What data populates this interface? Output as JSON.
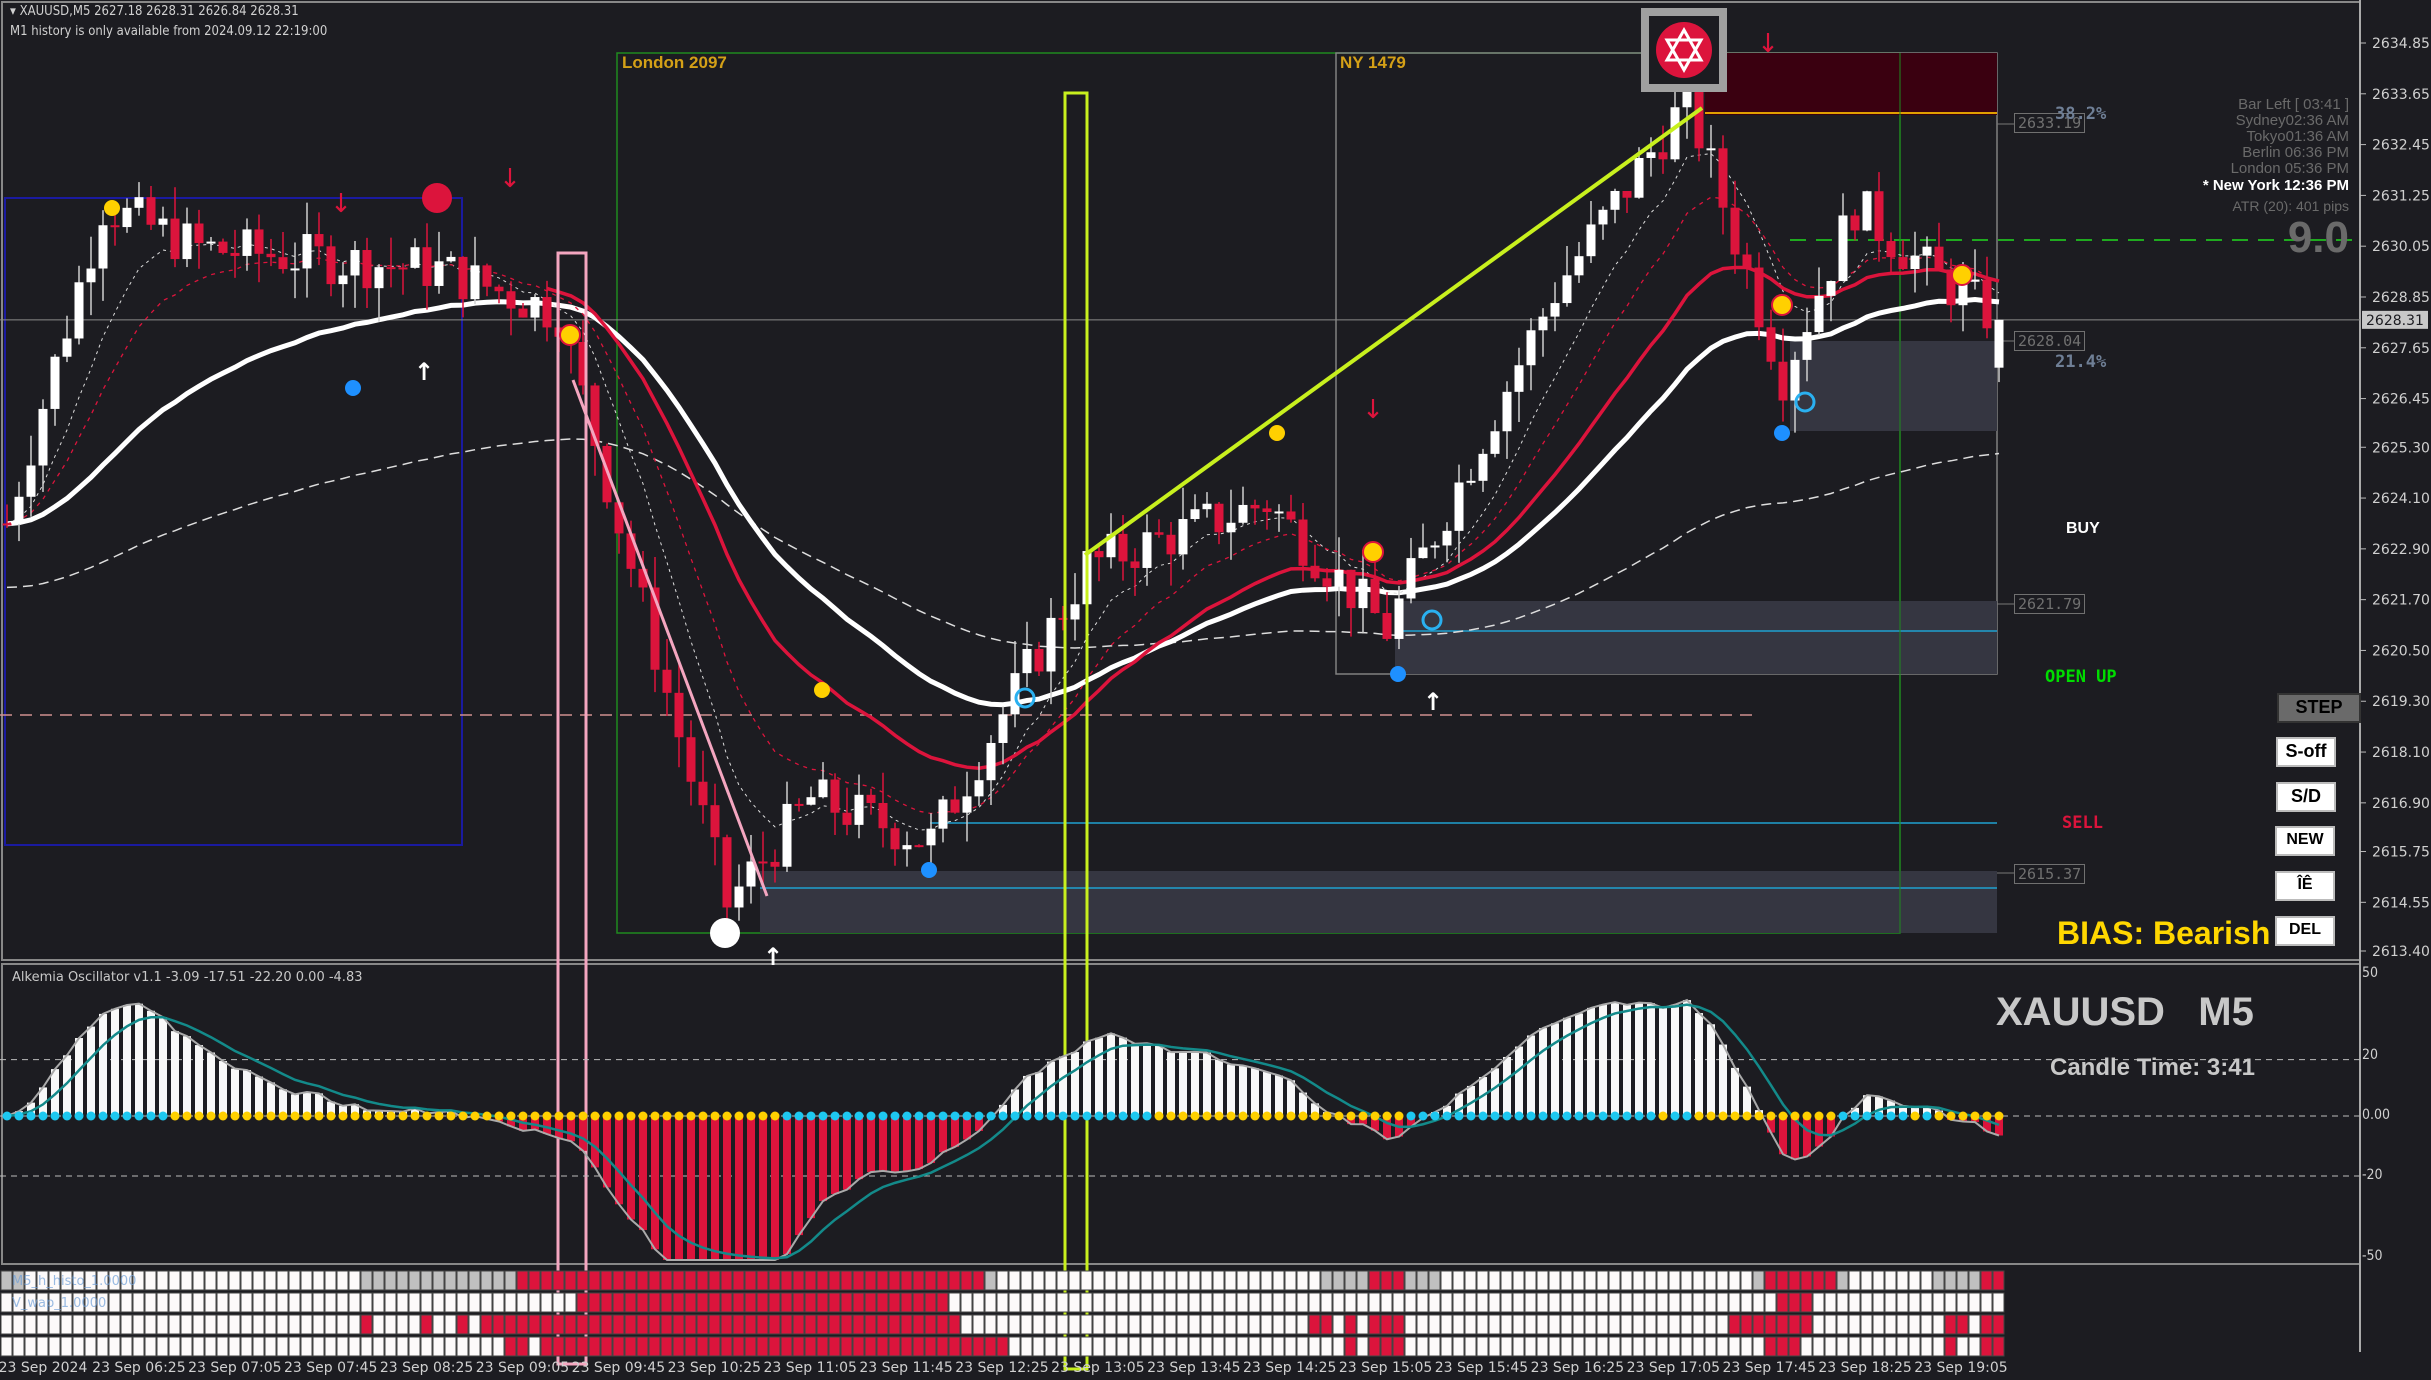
{
  "header": {
    "symbol_line": "XAUUSD,M5  2627.18 2628.31 2626.84 2628.31",
    "notice": "M1 history is only available from 2024.09.12 22:19:00"
  },
  "sessions": {
    "london_label": "London 2097",
    "ny_label": "NY 1479"
  },
  "levels": {
    "tags": [
      "2633.19",
      "2628.04",
      "2621.79",
      "2615.37"
    ],
    "fib_top": "38.2%",
    "fib_bottom": "21.4%"
  },
  "signals": {
    "buy": "BUY",
    "open": "OPEN UP",
    "sell": "SELL",
    "bias": "BIAS: Bearish"
  },
  "info_panel": {
    "bar_left": "Bar Left  [ 03:41 ]",
    "sydney": "Sydney02:36 AM",
    "tokyo": "Tokyo01:36 AM",
    "berlin": "Berlin 06:36 PM",
    "london": "London 05:36 PM",
    "new_york": "* New York 12:36 PM",
    "atr": "ATR (20): 401 pips",
    "big_value": "9.0"
  },
  "buttons": [
    "STEP",
    "S-off",
    "S/D",
    "NEW",
    "ÎÊ",
    "DEL"
  ],
  "price_axis": {
    "labels": [
      "2634.85",
      "2633.65",
      "2632.45",
      "2631.25",
      "2630.05",
      "2628.85",
      "2627.65",
      "2626.45",
      "2625.30",
      "2624.10",
      "2622.90",
      "2621.70",
      "2620.50",
      "2619.30",
      "2618.10",
      "2616.90",
      "2615.75",
      "2614.55",
      "2613.40"
    ],
    "current": "2628.31"
  },
  "oscillator": {
    "title": "Alkemia Oscillator v1.1 -3.09 -17.51 -22.20 0.00 -4.83",
    "axis": [
      "50",
      "20",
      "0.00",
      "-20",
      "-50"
    ],
    "symbol_label": "XAUUSD   M5",
    "candle_time": "Candle Time: 3:41"
  },
  "bar_rows": {
    "labels": [
      "M5_h_histo_1.0000",
      "V_wap_1.0000"
    ]
  },
  "time_axis": [
    "23 Sep 2024",
    "23 Sep 06:25",
    "23 Sep 07:05",
    "23 Sep 07:45",
    "23 Sep 08:25",
    "23 Sep 09:05",
    "23 Sep 09:45",
    "23 Sep 10:25",
    "23 Sep 11:05",
    "23 Sep 11:45",
    "23 Sep 12:25",
    "23 Sep 13:05",
    "23 Sep 13:45",
    "23 Sep 14:25",
    "23 Sep 15:05",
    "23 Sep 15:45",
    "23 Sep 16:25",
    "23 Sep 17:05",
    "23 Sep 17:45",
    "23 Sep 18:25",
    "23 Sep 19:05"
  ],
  "chart_data": {
    "type": "candlestick",
    "symbol": "XAUUSD",
    "timeframe": "M5",
    "ylim": [
      2613.4,
      2634.85
    ],
    "last_ohlc": {
      "open": 2627.18,
      "high": 2628.31,
      "low": 2626.84,
      "close": 2628.31
    },
    "price_path": [
      [
        "05:30",
        2623.5
      ],
      [
        "06:10",
        2631.0
      ],
      [
        "06:50",
        2630.0
      ],
      [
        "08:30",
        2629.5
      ],
      [
        "09:20",
        2628.5
      ],
      [
        "10:30",
        2614.5
      ],
      [
        "11:05",
        2617.0
      ],
      [
        "11:55",
        2616.0
      ],
      [
        "13:00",
        2622.5
      ],
      [
        "14:15",
        2624.0
      ],
      [
        "15:05",
        2621.0
      ],
      [
        "16:15",
        2629.0
      ],
      [
        "17:10",
        2633.5
      ],
      [
        "17:50",
        2627.0
      ],
      [
        "18:20",
        2631.0
      ],
      [
        "18:50",
        2629.5
      ],
      [
        "19:20",
        2628.3
      ]
    ]
  },
  "colors": {
    "bull": "#ffffff",
    "bear": "#dc143c",
    "lime": "#c8f01e",
    "pink": "#f4a6c0",
    "session_box": "#1f8a1f",
    "ny_box": "#808080",
    "asia_box": "#1a1aa0",
    "bias": "#ffd700",
    "buy": "#ffffff",
    "open_up": "#00dd00",
    "sell": "#dc143c"
  }
}
